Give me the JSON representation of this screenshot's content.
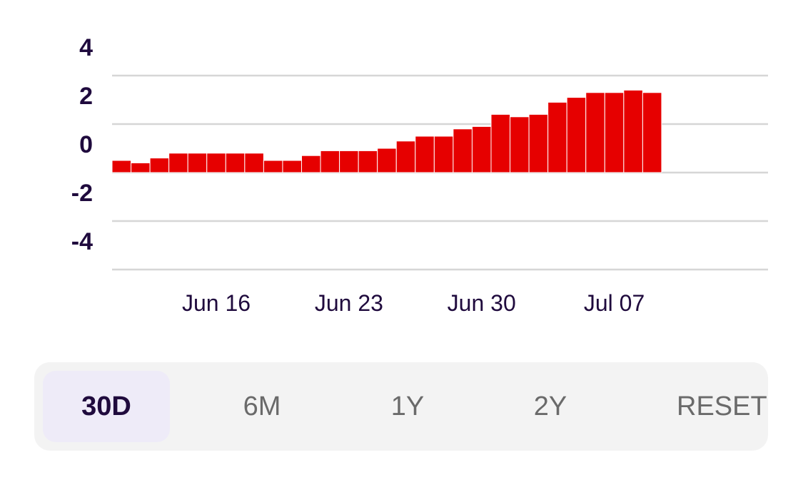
{
  "chart_data": {
    "type": "bar",
    "x": [
      "2024-06-11",
      "2024-06-12",
      "2024-06-13",
      "2024-06-14",
      "2024-06-15",
      "2024-06-16",
      "2024-06-17",
      "2024-06-18",
      "2024-06-19",
      "2024-06-20",
      "2024-06-21",
      "2024-06-22",
      "2024-06-23",
      "2024-06-24",
      "2024-06-25",
      "2024-06-26",
      "2024-06-27",
      "2024-06-28",
      "2024-06-29",
      "2024-06-30",
      "2024-07-01",
      "2024-07-02",
      "2024-07-03",
      "2024-07-04",
      "2024-07-05",
      "2024-07-06",
      "2024-07-07",
      "2024-07-08",
      "2024-07-09"
    ],
    "values": [
      0.5,
      0.4,
      0.6,
      0.8,
      0.8,
      0.8,
      0.8,
      0.8,
      0.5,
      0.5,
      0.7,
      0.9,
      0.9,
      0.9,
      1.0,
      1.3,
      1.5,
      1.5,
      1.8,
      1.9,
      2.4,
      2.3,
      2.4,
      2.9,
      3.1,
      3.3,
      3.3,
      3.4,
      3.3
    ],
    "ylim": [
      -4.9,
      5.0
    ],
    "yticks": [
      "4",
      "2",
      "0",
      "-2",
      "-4"
    ],
    "ytick_values": [
      4,
      2,
      0,
      -2,
      -4
    ],
    "gridlines": [
      3,
      1,
      -1,
      -3,
      -5
    ],
    "xtick_labels": [
      "Jun 16",
      "Jun 23",
      "Jun 30",
      "Jul 07"
    ],
    "xtick_dates": [
      "2024-06-16",
      "2024-06-23",
      "2024-06-30",
      "2024-07-07"
    ],
    "bar_color": "#e60000",
    "grid": true,
    "title": "",
    "xlabel": "",
    "ylabel": ""
  },
  "range_selector": {
    "buttons": [
      "30D",
      "6M",
      "1Y",
      "2Y",
      "RESET"
    ],
    "active": "30D",
    "active_color": "#eeebf8",
    "background_color": "#f3f3f3"
  }
}
